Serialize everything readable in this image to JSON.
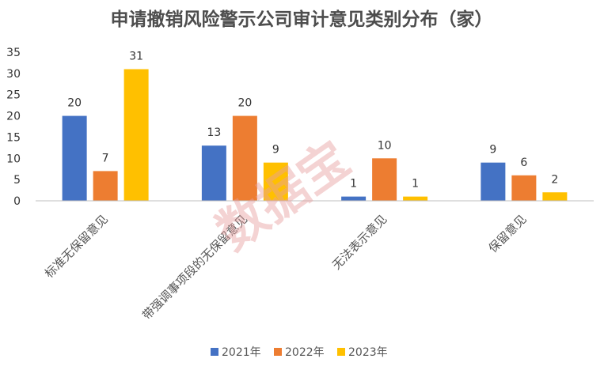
{
  "chart_data": {
    "type": "bar",
    "title": "申请撤销风险警示公司审计意见类别分布（家）",
    "categories": [
      "标准无保留意见",
      "带强调事项段的无保留意见",
      "无法表示意见",
      "保留意见"
    ],
    "series": [
      {
        "name": "2021年",
        "color": "#4472c4",
        "values": [
          20,
          13,
          1,
          9
        ]
      },
      {
        "name": "2022年",
        "color": "#ed7d31",
        "values": [
          7,
          20,
          10,
          6
        ]
      },
      {
        "name": "2023年",
        "color": "#ffc000",
        "values": [
          31,
          9,
          1,
          2
        ]
      }
    ],
    "ylim": [
      0,
      35
    ],
    "yticks": [
      0,
      5,
      10,
      15,
      20,
      25,
      30,
      35
    ],
    "grid": false,
    "legend": "bottom"
  },
  "watermark": "数据宝"
}
